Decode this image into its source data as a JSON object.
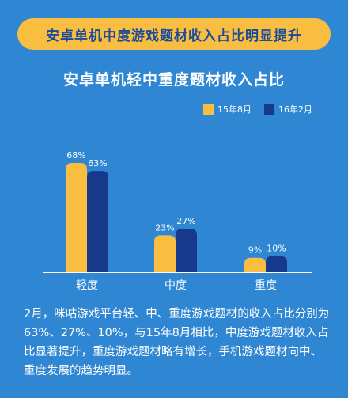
{
  "banner": {
    "title": "安卓单机中度游戏题材收入占比明显提升"
  },
  "chart_data": {
    "type": "bar",
    "title": "安卓单机轻中重度题材收入占比",
    "categories": [
      "轻度",
      "中度",
      "重度"
    ],
    "series": [
      {
        "name": "15年8月",
        "values": [
          68,
          23,
          9
        ],
        "labels": [
          "68%",
          "23%",
          "9%"
        ],
        "color": "#f9bd42"
      },
      {
        "name": "16年2月",
        "values": [
          63,
          27,
          10
        ],
        "labels": [
          "63%",
          "27%",
          "10%"
        ],
        "color": "#17398b"
      }
    ],
    "ylim": [
      0,
      70
    ],
    "grid": false,
    "legend": "top-right"
  },
  "description": "2月，咪咕游戏平台轻、中、重度游戏题材的收入占比分别为63%、27%、10%，与15年8月相比，中度游戏题材收入占比显著提升，重度游戏题材略有增长，手机游戏题材向中、重度发展的趋势明显。"
}
